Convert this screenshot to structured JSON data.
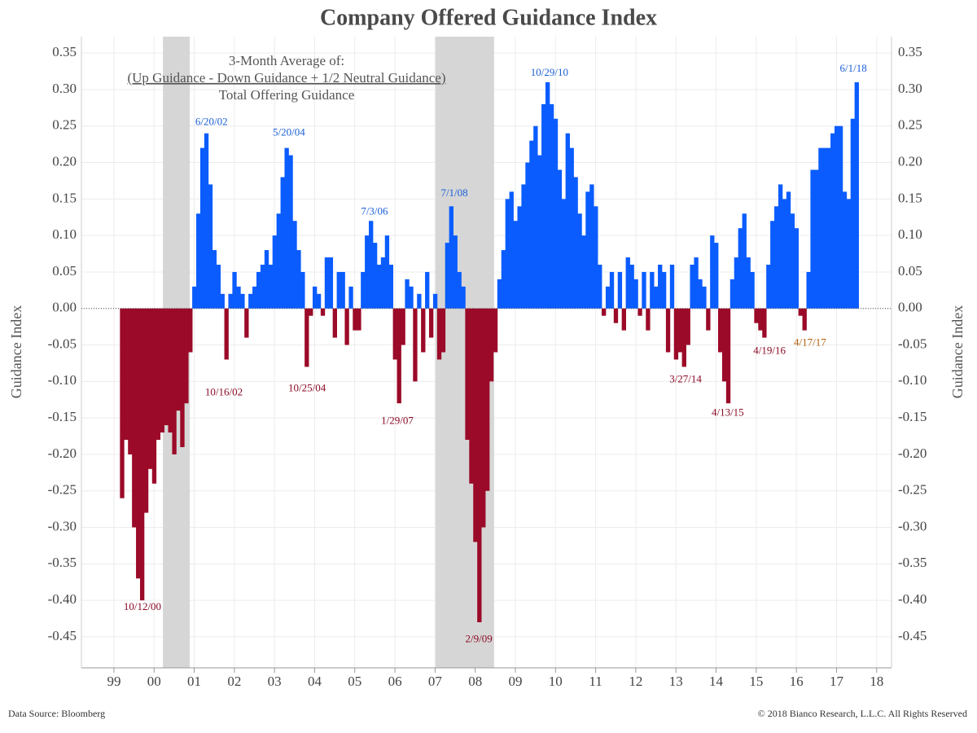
{
  "chart_data": {
    "type": "bar",
    "title": "Company Offered Guidance Index",
    "subtitle_lines": [
      "3-Month Average of:",
      "(Up Guidance - Down Guidance + 1/2 Neutral Guidance)",
      "Total Offering Guidance"
    ],
    "y_label": "Guidance Index",
    "y2_label": "Guidance Index",
    "source": "Data Source: Bloomberg",
    "copyright": "© 2018 Bianco Research, L.L.C. All Rights Reserved",
    "positive_color": "#0a5cff",
    "negative_color": "#9b0a28",
    "shade_color": "#d6d6d6",
    "grid": true,
    "xlim": [
      1998.19,
      2018.37
    ],
    "ylim": [
      -0.4925,
      0.3725
    ],
    "xticks": [
      {
        "value": 1999,
        "label": "99"
      },
      {
        "value": 2000,
        "label": "00"
      },
      {
        "value": 2001,
        "label": "01"
      },
      {
        "value": 2002,
        "label": "02"
      },
      {
        "value": 2003,
        "label": "03"
      },
      {
        "value": 2004,
        "label": "04"
      },
      {
        "value": 2005,
        "label": "05"
      },
      {
        "value": 2006,
        "label": "06"
      },
      {
        "value": 2007,
        "label": "07"
      },
      {
        "value": 2008,
        "label": "08"
      },
      {
        "value": 2009,
        "label": "09"
      },
      {
        "value": 2010,
        "label": "10"
      },
      {
        "value": 2011,
        "label": "11"
      },
      {
        "value": 2012,
        "label": "12"
      },
      {
        "value": 2013,
        "label": "13"
      },
      {
        "value": 2014,
        "label": "14"
      },
      {
        "value": 2015,
        "label": "15"
      },
      {
        "value": 2016,
        "label": "16"
      },
      {
        "value": 2017,
        "label": "17"
      },
      {
        "value": 2018,
        "label": "18"
      }
    ],
    "yticks": [
      {
        "value": 0.35,
        "label": "0.35"
      },
      {
        "value": 0.3,
        "label": "0.30"
      },
      {
        "value": 0.25,
        "label": "0.25"
      },
      {
        "value": 0.2,
        "label": "0.20"
      },
      {
        "value": 0.15,
        "label": "0.15"
      },
      {
        "value": 0.1,
        "label": "0.10"
      },
      {
        "value": 0.05,
        "label": "0.05"
      },
      {
        "value": 0,
        "label": "0.00"
      },
      {
        "value": -0.05,
        "label": "-0.05"
      },
      {
        "value": -0.1,
        "label": "-0.10"
      },
      {
        "value": -0.15,
        "label": "-0.15"
      },
      {
        "value": -0.2,
        "label": "-0.20"
      },
      {
        "value": -0.25,
        "label": "-0.25"
      },
      {
        "value": -0.3,
        "label": "-0.30"
      },
      {
        "value": -0.35,
        "label": "-0.35"
      },
      {
        "value": -0.4,
        "label": "-0.40"
      },
      {
        "value": -0.45,
        "label": "-0.45"
      }
    ],
    "shaded_ranges": [
      [
        2000.22,
        2000.89
      ],
      [
        2007.01,
        2008.47
      ]
    ],
    "x": [
      1999.2,
      1999.3,
      1999.4,
      1999.5,
      1999.6,
      1999.7,
      1999.8,
      1999.9,
      2000.0,
      2000.1,
      2000.2,
      2000.3,
      2000.4,
      2000.5,
      2000.6,
      2000.7,
      2000.8,
      2000.9,
      2001.0,
      2001.1,
      2001.2,
      2001.3,
      2001.4,
      2001.5,
      2001.6,
      2001.7,
      2001.8,
      2001.9,
      2002.0,
      2002.1,
      2002.2,
      2002.3,
      2002.4,
      2002.5,
      2002.6,
      2002.7,
      2002.8,
      2002.9,
      2003.0,
      2003.1,
      2003.2,
      2003.3,
      2003.4,
      2003.5,
      2003.6,
      2003.7,
      2003.8,
      2003.9,
      2004.0,
      2004.1,
      2004.2,
      2004.3,
      2004.4,
      2004.5,
      2004.6,
      2004.7,
      2004.8,
      2004.9,
      2005.0,
      2005.1,
      2005.2,
      2005.3,
      2005.4,
      2005.5,
      2005.6,
      2005.7,
      2005.8,
      2005.9,
      2006.0,
      2006.1,
      2006.2,
      2006.3,
      2006.4,
      2006.5,
      2006.6,
      2006.7,
      2006.8,
      2006.9,
      2007.0,
      2007.1,
      2007.2,
      2007.3,
      2007.4,
      2007.5,
      2007.6,
      2007.7,
      2007.8,
      2007.9,
      2008.0,
      2008.1,
      2008.2,
      2008.3,
      2008.4,
      2008.5,
      2008.6,
      2008.7,
      2008.8,
      2008.9,
      2009.0,
      2009.1,
      2009.2,
      2009.3,
      2009.4,
      2009.5,
      2009.6,
      2009.7,
      2009.8,
      2009.9,
      2010.0,
      2010.1,
      2010.2,
      2010.3,
      2010.4,
      2010.5,
      2010.6,
      2010.7,
      2010.8,
      2010.9,
      2011.0,
      2011.1,
      2011.2,
      2011.3,
      2011.4,
      2011.5,
      2011.6,
      2011.7,
      2011.8,
      2011.9,
      2012.0,
      2012.1,
      2012.2,
      2012.3,
      2012.4,
      2012.5,
      2012.6,
      2012.7,
      2012.8,
      2012.9,
      2013.0,
      2013.1,
      2013.2,
      2013.3,
      2013.4,
      2013.5,
      2013.6,
      2013.7,
      2013.8,
      2013.9,
      2014.0,
      2014.1,
      2014.2,
      2014.3,
      2014.4,
      2014.5,
      2014.6,
      2014.7,
      2014.8,
      2014.9,
      2015.0,
      2015.1,
      2015.2,
      2015.3,
      2015.4,
      2015.5,
      2015.6,
      2015.7,
      2015.8,
      2015.9,
      2016.0,
      2016.1,
      2016.2,
      2016.3,
      2016.4,
      2016.5,
      2016.6,
      2016.7,
      2016.8,
      2016.9,
      2017.0,
      2017.1,
      2017.2,
      2017.3,
      2017.4,
      2017.5
    ],
    "values": [
      -0.26,
      -0.18,
      -0.2,
      -0.3,
      -0.37,
      -0.4,
      -0.28,
      -0.22,
      -0.24,
      -0.18,
      -0.17,
      -0.16,
      -0.17,
      -0.2,
      -0.14,
      -0.19,
      -0.13,
      -0.06,
      0.03,
      0.13,
      0.22,
      0.24,
      0.17,
      0.08,
      0.06,
      0.02,
      -0.07,
      0.02,
      0.05,
      0.03,
      0.02,
      -0.04,
      0.02,
      0.03,
      0.05,
      0.06,
      0.08,
      0.06,
      0.1,
      0.13,
      0.18,
      0.22,
      0.21,
      0.12,
      0.08,
      0.05,
      -0.08,
      -0.01,
      0.03,
      0.02,
      -0.01,
      0.07,
      0.07,
      -0.04,
      0.05,
      0.05,
      -0.05,
      0.03,
      -0.03,
      -0.03,
      0.05,
      0.1,
      0.12,
      0.09,
      0.06,
      0.07,
      0.1,
      0.06,
      -0.07,
      -0.13,
      -0.05,
      0.04,
      0.03,
      -0.1,
      0.02,
      -0.06,
      0.05,
      -0.04,
      0.02,
      -0.07,
      -0.06,
      0.09,
      0.14,
      0.1,
      0.05,
      0.03,
      -0.18,
      -0.24,
      -0.32,
      -0.43,
      -0.3,
      -0.25,
      -0.1,
      -0.06,
      0.04,
      0.08,
      0.15,
      0.16,
      0.12,
      0.14,
      0.17,
      0.2,
      0.23,
      0.25,
      0.21,
      0.28,
      0.31,
      0.28,
      0.26,
      0.19,
      0.15,
      0.24,
      0.22,
      0.18,
      0.13,
      0.1,
      0.16,
      0.17,
      0.14,
      0.06,
      -0.01,
      0.03,
      0.05,
      -0.02,
      0.05,
      -0.03,
      0.07,
      0.06,
      0.04,
      -0.01,
      0.05,
      -0.03,
      0.05,
      0.03,
      0.06,
      0.05,
      -0.06,
      0.06,
      -0.07,
      -0.06,
      -0.08,
      -0.05,
      0.06,
      0.07,
      0.04,
      0.03,
      -0.03,
      0.1,
      0.09,
      -0.06,
      -0.1,
      -0.13,
      0.04,
      0.07,
      0.11,
      0.13,
      0.07,
      0.05,
      -0.02,
      -0.03,
      -0.04,
      0.06,
      0.12,
      0.14,
      0.17,
      0.15,
      0.16,
      0.13,
      0.11,
      -0.01,
      -0.03,
      0.05,
      0.19,
      0.19,
      0.22,
      0.22,
      0.22,
      0.24,
      0.25,
      0.25,
      0.16,
      0.15,
      0.26,
      0.31
    ],
    "annotations": [
      {
        "text": "10/12/00",
        "x": 1999.71,
        "y": -0.41,
        "color": "#8a0a24"
      },
      {
        "text": "6/20/02",
        "x": 2001.43,
        "y": 0.255,
        "color": "#1a5fd6"
      },
      {
        "text": "10/16/02",
        "x": 2001.74,
        "y": -0.116,
        "color": "#8a0a24"
      },
      {
        "text": "5/20/04",
        "x": 2003.36,
        "y": 0.24,
        "color": "#1a5fd6"
      },
      {
        "text": "10/25/04",
        "x": 2003.81,
        "y": -0.11,
        "color": "#8a0a24"
      },
      {
        "text": "7/3/06",
        "x": 2005.49,
        "y": 0.132,
        "color": "#1a5fd6"
      },
      {
        "text": "1/29/07",
        "x": 2006.06,
        "y": -0.155,
        "color": "#8a0a24"
      },
      {
        "text": "7/1/08",
        "x": 2007.48,
        "y": 0.157,
        "color": "#1a5fd6"
      },
      {
        "text": "2/9/09",
        "x": 2008.09,
        "y": -0.454,
        "color": "#8a0a24"
      },
      {
        "text": "10/29/10",
        "x": 2009.85,
        "y": 0.322,
        "color": "#1a5fd6"
      },
      {
        "text": "3/27/14",
        "x": 2013.24,
        "y": -0.098,
        "color": "#8a0a24"
      },
      {
        "text": "4/13/15",
        "x": 2014.29,
        "y": -0.144,
        "color": "#8a0a24"
      },
      {
        "text": "4/19/16",
        "x": 2015.33,
        "y": -0.059,
        "color": "#8a0a24"
      },
      {
        "text": "4/17/17",
        "x": 2016.34,
        "y": -0.048,
        "color": "#b0600a"
      },
      {
        "text": "6/1/18",
        "x": 2017.42,
        "y": 0.328,
        "color": "#1a5fd6"
      }
    ]
  }
}
